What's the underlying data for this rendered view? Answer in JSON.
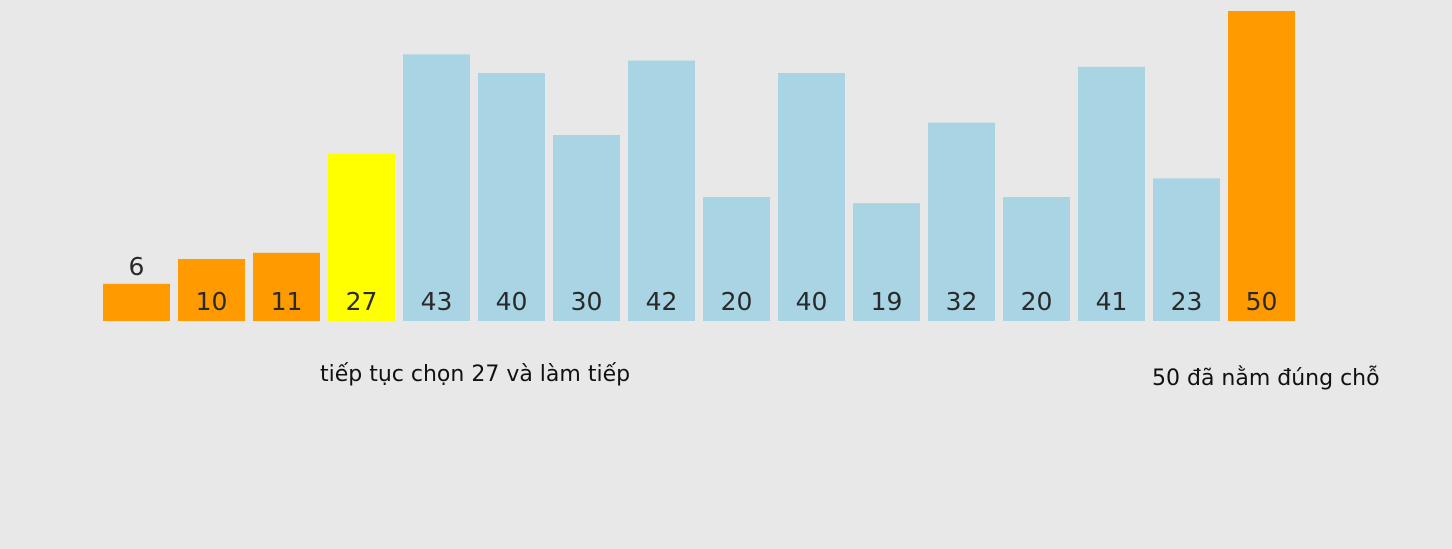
{
  "chart_data": {
    "type": "bar",
    "values": [
      6,
      10,
      11,
      27,
      43,
      40,
      30,
      42,
      20,
      40,
      19,
      32,
      20,
      41,
      23,
      50
    ],
    "labels": [
      "6",
      "10",
      "11",
      "27",
      "43",
      "40",
      "30",
      "42",
      "20",
      "40",
      "19",
      "32",
      "20",
      "41",
      "23",
      "50"
    ],
    "states": [
      "sorted",
      "sorted",
      "sorted",
      "pivot",
      "unsorted",
      "unsorted",
      "unsorted",
      "unsorted",
      "unsorted",
      "unsorted",
      "unsorted",
      "unsorted",
      "unsorted",
      "unsorted",
      "unsorted",
      "sorted"
    ],
    "colors": {
      "sorted": "#ff9a00",
      "pivot": "#ffff00",
      "unsorted": "#a8d4e4"
    },
    "title": "",
    "xlabel": "",
    "ylabel": "",
    "grid": false
  },
  "captions": {
    "left": "tiếp tục chọn 27 và làm tiếp",
    "right": "50 đã nằm đúng chỗ"
  }
}
